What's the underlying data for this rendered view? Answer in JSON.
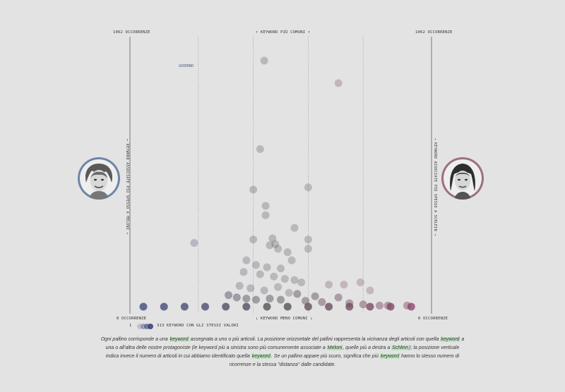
{
  "chart_data": {
    "type": "scatter",
    "top_left_label": "1062 OCCORRENZE",
    "top_center_label": "↑ KEYWORD PIÙ COMUNI ↑",
    "top_right_label": "1062 OCCORRENZE",
    "bottom_left_label": "0 OCCORRENZE",
    "bottom_center_label": "↓ KEYWORD MENO COMUNI ↓",
    "bottom_right_label": "0 OCCORRENZE",
    "left_axis_label": "← KEYWORD ASSOCIATE PIÙ SPESSO A MELONI ←",
    "right_axis_label": "→ KEYWORD ASSOCIATE PIÙ SPESSO A SCHLEIN →",
    "annotation": "GOVERNO",
    "ylim": [
      0,
      1062
    ],
    "xlim": [
      -1,
      1
    ],
    "colors": {
      "meloni": "#3b4177",
      "schlein": "#8a3f66",
      "neutral": "#4a4a4e"
    },
    "points": [
      {
        "x": -0.12,
        "y": 1062
      },
      {
        "x": 0.42,
        "y": 965
      },
      {
        "x": -0.15,
        "y": 680
      },
      {
        "x": -0.2,
        "y": 505
      },
      {
        "x": 0.2,
        "y": 515
      },
      {
        "x": -0.11,
        "y": 435
      },
      {
        "x": -0.11,
        "y": 395
      },
      {
        "x": 0.1,
        "y": 340
      },
      {
        "x": -0.2,
        "y": 290
      },
      {
        "x": -0.06,
        "y": 295
      },
      {
        "x": 0.2,
        "y": 290
      },
      {
        "x": -0.63,
        "y": 275
      },
      {
        "x": -0.08,
        "y": 265
      },
      {
        "x": -0.04,
        "y": 270
      },
      {
        "x": -0.02,
        "y": 250
      },
      {
        "x": 0.05,
        "y": 235
      },
      {
        "x": 0.2,
        "y": 250
      },
      {
        "x": -0.25,
        "y": 200
      },
      {
        "x": -0.18,
        "y": 180
      },
      {
        "x": -0.1,
        "y": 170
      },
      {
        "x": 0.0,
        "y": 165
      },
      {
        "x": 0.08,
        "y": 200
      },
      {
        "x": -0.27,
        "y": 150
      },
      {
        "x": -0.15,
        "y": 140
      },
      {
        "x": -0.05,
        "y": 130
      },
      {
        "x": 0.03,
        "y": 120
      },
      {
        "x": 0.1,
        "y": 115
      },
      {
        "x": 0.15,
        "y": 105
      },
      {
        "x": 0.35,
        "y": 95
      },
      {
        "x": 0.46,
        "y": 95
      },
      {
        "x": 0.58,
        "y": 105
      },
      {
        "x": 0.65,
        "y": 70
      },
      {
        "x": -0.3,
        "y": 90
      },
      {
        "x": -0.22,
        "y": 80
      },
      {
        "x": -0.12,
        "y": 70
      },
      {
        "x": -0.02,
        "y": 85
      },
      {
        "x": 0.06,
        "y": 60
      },
      {
        "x": 0.12,
        "y": 55
      },
      {
        "x": 0.25,
        "y": 45
      },
      {
        "x": 0.42,
        "y": 40
      },
      {
        "x": -0.38,
        "y": 50
      },
      {
        "x": -0.32,
        "y": 40
      },
      {
        "x": -0.25,
        "y": 35
      },
      {
        "x": -0.18,
        "y": 30
      },
      {
        "x": -0.08,
        "y": 35
      },
      {
        "x": 0.0,
        "y": 30
      },
      {
        "x": 0.18,
        "y": 25
      },
      {
        "x": 0.3,
        "y": 20
      },
      {
        "x": 0.5,
        "y": 15
      },
      {
        "x": 0.6,
        "y": 10
      },
      {
        "x": 0.72,
        "y": 5
      },
      {
        "x": 0.78,
        "y": 5
      },
      {
        "x": 0.92,
        "y": 5
      },
      {
        "x": -1.0,
        "y": 0
      },
      {
        "x": -0.85,
        "y": 0
      },
      {
        "x": -0.7,
        "y": 0
      },
      {
        "x": -0.55,
        "y": 0
      },
      {
        "x": -0.4,
        "y": 0
      },
      {
        "x": -0.25,
        "y": 0
      },
      {
        "x": -0.1,
        "y": 0
      },
      {
        "x": 0.05,
        "y": 0
      },
      {
        "x": 0.2,
        "y": 0
      },
      {
        "x": 0.35,
        "y": 0
      },
      {
        "x": 0.5,
        "y": 0
      },
      {
        "x": 0.65,
        "y": 0
      },
      {
        "x": 0.8,
        "y": 0
      },
      {
        "x": 0.95,
        "y": 0
      }
    ]
  },
  "legend": {
    "min_label": "1",
    "max_label": "313 KEYWORD CON GLI STESSI VALORI"
  },
  "caption": {
    "p1": "Ogni pallino corrisponde a una ",
    "k1": "keyword",
    "p2": " assegnata a uno o più articoli. La posizione orizzontale del pallini rappresenta la vicinanza degli articoli con quella ",
    "k2": "keyword",
    "p3": " a una o all'altra delle nostre protagoniste (le keyword più a sinistra sono più comunemente associate a ",
    "k3": "Meloni",
    "p4": ", quelle più a destra a ",
    "k4": "Schlein",
    "p5": "); la posizione verticale indica invece il numero di articoli in cui abbiamo identificato quella ",
    "k5": "keyword",
    "p6": ". Se un pallino appare più scuro, significa che più ",
    "k6": "keyword",
    "p7": " hanno lo stesso numero di ricorrenze e la stessa \"distanza\" dalle candidate."
  }
}
